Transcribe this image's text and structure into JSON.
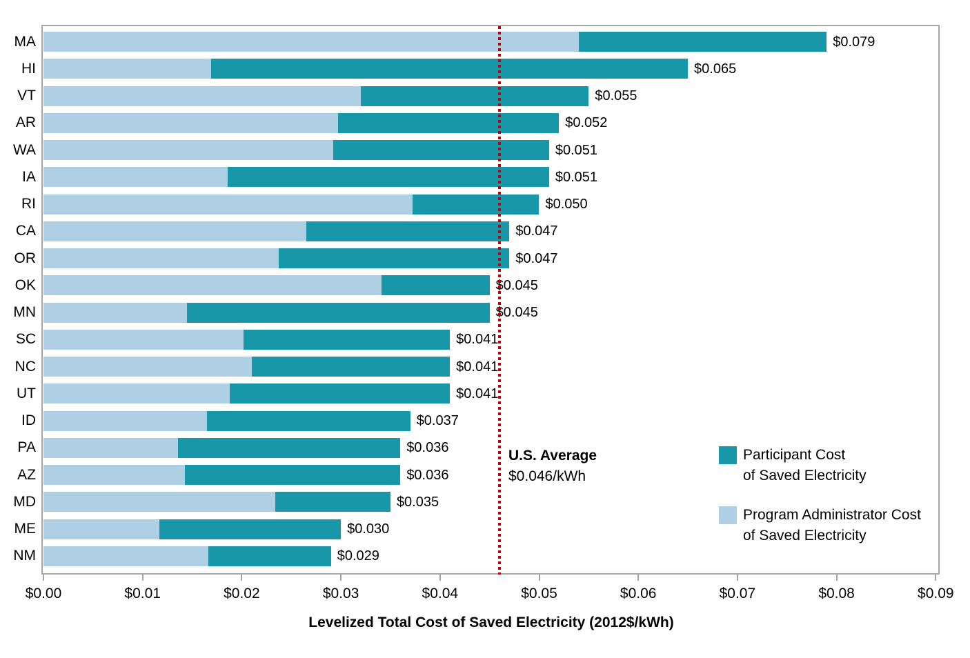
{
  "chart_data": {
    "type": "bar",
    "variant": "horizontal-stacked",
    "xlabel": "Levelized Total Cost of Saved Electricity (2012$/kWh)",
    "xlim": [
      0,
      0.09
    ],
    "x_ticks": [
      "$0.00",
      "$0.01",
      "$0.02",
      "$0.03",
      "$0.04",
      "$0.05",
      "$0.06",
      "$0.07",
      "$0.08",
      "$0.09"
    ],
    "grid": false,
    "categories": [
      "MA",
      "HI",
      "VT",
      "AR",
      "WA",
      "IA",
      "RI",
      "CA",
      "OR",
      "OK",
      "MN",
      "SC",
      "NC",
      "UT",
      "ID",
      "PA",
      "AZ",
      "MD",
      "ME",
      "NM"
    ],
    "series": [
      {
        "name": "Program Administrator Cost of Saved Electricity",
        "color": "#aecfe4",
        "values": [
          0.054,
          0.0169,
          0.032,
          0.0297,
          0.0292,
          0.0186,
          0.0372,
          0.0265,
          0.0237,
          0.0341,
          0.0145,
          0.0202,
          0.021,
          0.0188,
          0.0165,
          0.0136,
          0.0143,
          0.0234,
          0.0117,
          0.0166
        ]
      },
      {
        "name": "Participant Cost of Saved Electricity",
        "color": "#1897a8",
        "values": [
          0.025,
          0.0481,
          0.023,
          0.0223,
          0.0218,
          0.0324,
          0.0128,
          0.0205,
          0.0233,
          0.0109,
          0.0305,
          0.0208,
          0.02,
          0.0222,
          0.0205,
          0.0224,
          0.0217,
          0.0116,
          0.0183,
          0.0124
        ]
      }
    ],
    "totals": [
      0.079,
      0.065,
      0.055,
      0.052,
      0.051,
      0.051,
      0.05,
      0.047,
      0.047,
      0.045,
      0.045,
      0.041,
      0.041,
      0.041,
      0.037,
      0.036,
      0.036,
      0.035,
      0.03,
      0.029
    ],
    "total_labels": [
      "$0.079",
      "$0.065",
      "$0.055",
      "$0.052",
      "$0.051",
      "$0.051",
      "$0.050",
      "$0.047",
      "$0.047",
      "$0.045",
      "$0.045",
      "$0.041",
      "$0.041",
      "$0.041",
      "$0.037",
      "$0.036",
      "$0.036",
      "$0.035",
      "$0.030",
      "$0.029"
    ],
    "average_line": {
      "value": 0.046,
      "label_line1": "U.S. Average",
      "label_line2": "$0.046/kWh",
      "color": "#c00000"
    },
    "legend": {
      "position": "inside-right",
      "items": [
        {
          "line1": "Participant Cost",
          "line2": "of Saved Electricity",
          "color": "#1897a8"
        },
        {
          "line1": "Program Administrator Cost",
          "line2": "of Saved Electricity",
          "color": "#aecfe4"
        }
      ]
    },
    "colors": {
      "axis": "#a6a6a6",
      "text": "#000000",
      "background": "#ffffff"
    }
  }
}
